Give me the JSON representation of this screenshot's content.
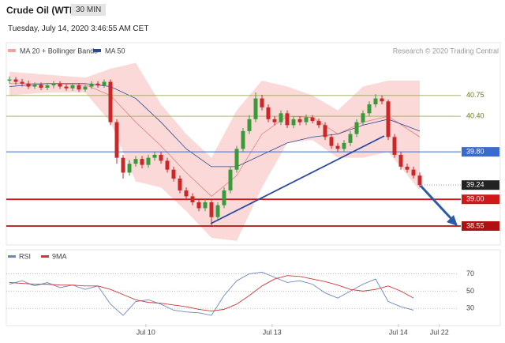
{
  "header": {
    "instrument": "Crude Oil (WTI)",
    "timeframe": "30 MIN",
    "timestamp": "Tuesday, July 14, 2020 3:46:55 AM CET",
    "credit": "Research © 2020 Trading Central"
  },
  "chart_data": [
    {
      "type": "candlestick",
      "ylim": [
        38.23,
        41.36
      ],
      "xlim": [
        -0.5,
        71
      ],
      "xticks": [
        {
          "value": 21.6,
          "label": "Jul 10"
        },
        {
          "value": 41.6,
          "label": "Jul 13"
        },
        {
          "value": 61.6,
          "label": "Jul 14"
        },
        {
          "value": 68.1,
          "label": "Jul 22"
        }
      ],
      "up_color": "#3a9a3a",
      "down_color": "#c82828",
      "open": [
        41.0,
        41.02,
        40.98,
        40.95,
        40.9,
        40.93,
        40.88,
        40.92,
        40.95,
        40.9,
        40.87,
        40.92,
        40.85,
        40.9,
        40.95,
        40.92,
        40.98,
        40.3,
        39.7,
        39.45,
        39.6,
        39.68,
        39.58,
        39.7,
        39.75,
        39.65,
        39.5,
        39.35,
        39.15,
        39.05,
        38.95,
        38.85,
        38.95,
        38.7,
        38.9,
        39.15,
        39.5,
        39.85,
        40.15,
        40.35,
        40.7,
        40.55,
        40.35,
        40.3,
        40.45,
        40.25,
        40.35,
        40.3,
        40.38,
        40.32,
        40.25,
        40.05,
        39.9,
        39.85,
        39.95,
        40.1,
        40.3,
        40.45,
        40.6,
        40.7,
        40.65,
        40.05,
        39.75,
        39.55,
        39.5,
        39.4
      ],
      "high": [
        41.07,
        41.06,
        41.03,
        41.0,
        40.97,
        40.97,
        40.96,
        40.99,
        40.99,
        40.94,
        40.96,
        40.96,
        40.93,
        40.99,
        40.99,
        41.02,
        41.02,
        40.35,
        39.75,
        39.66,
        39.73,
        39.73,
        39.75,
        39.8,
        39.8,
        39.7,
        39.55,
        39.4,
        39.2,
        39.1,
        39.0,
        39.0,
        38.99,
        38.95,
        39.2,
        39.55,
        39.9,
        40.2,
        40.42,
        40.8,
        40.76,
        40.6,
        40.4,
        40.5,
        40.5,
        40.4,
        40.4,
        40.43,
        40.42,
        40.36,
        40.3,
        40.1,
        39.95,
        40.0,
        40.15,
        40.35,
        40.5,
        40.65,
        40.77,
        40.75,
        40.68,
        40.1,
        39.8,
        39.6,
        39.55,
        39.45
      ],
      "low": [
        40.95,
        40.93,
        40.9,
        40.86,
        40.86,
        40.84,
        40.84,
        40.87,
        40.86,
        40.83,
        40.83,
        40.81,
        40.81,
        40.86,
        40.88,
        40.88,
        40.25,
        39.6,
        39.35,
        39.4,
        39.55,
        39.52,
        39.53,
        39.65,
        39.6,
        39.45,
        39.3,
        39.1,
        39.0,
        38.9,
        38.8,
        38.8,
        38.55,
        38.65,
        38.85,
        39.1,
        39.45,
        39.8,
        40.1,
        40.3,
        40.5,
        40.3,
        40.25,
        40.25,
        40.2,
        40.2,
        40.25,
        40.25,
        40.28,
        40.2,
        40.0,
        39.85,
        39.8,
        39.8,
        39.9,
        40.05,
        40.25,
        40.4,
        40.55,
        40.6,
        40.0,
        39.7,
        39.5,
        39.45,
        39.35,
        39.2
      ],
      "close": [
        41.02,
        40.98,
        40.95,
        40.9,
        40.93,
        40.88,
        40.92,
        40.95,
        40.9,
        40.87,
        40.92,
        40.85,
        40.9,
        40.95,
        40.92,
        40.98,
        40.3,
        39.7,
        39.45,
        39.6,
        39.68,
        39.58,
        39.7,
        39.75,
        39.65,
        39.5,
        39.35,
        39.15,
        39.05,
        38.95,
        38.85,
        38.95,
        38.7,
        38.9,
        39.15,
        39.5,
        39.85,
        40.15,
        40.35,
        40.7,
        40.55,
        40.35,
        40.3,
        40.45,
        40.25,
        40.35,
        40.3,
        40.38,
        40.32,
        40.25,
        40.05,
        39.9,
        39.85,
        39.95,
        40.1,
        40.3,
        40.45,
        40.6,
        40.7,
        40.65,
        40.05,
        39.75,
        39.55,
        39.5,
        39.4,
        39.24
      ],
      "bands": {
        "name": "MA 20 + Bollinger Bands",
        "color": "#f4a0a0",
        "x": [
          0,
          6,
          12,
          16,
          20,
          24,
          28,
          32,
          36,
          40,
          44,
          48,
          52,
          56,
          60,
          65
        ],
        "upper": [
          41.15,
          41.1,
          41.05,
          41.2,
          41.3,
          40.6,
          40.1,
          39.7,
          40.5,
          41.0,
          40.9,
          40.75,
          40.5,
          40.9,
          41.0,
          41.0
        ],
        "lower": [
          40.75,
          40.8,
          40.8,
          40.3,
          39.3,
          39.2,
          38.8,
          38.35,
          38.3,
          39.2,
          39.95,
          40.0,
          39.7,
          39.7,
          39.8,
          39.15
        ],
        "ma20": [
          40.95,
          40.95,
          40.93,
          40.75,
          40.3,
          39.9,
          39.45,
          39.05,
          39.4,
          40.1,
          40.4,
          40.38,
          40.1,
          40.3,
          40.4,
          40.05
        ]
      },
      "ma50": {
        "name": "MA 50",
        "color": "#2a4a8c",
        "x": [
          0,
          6,
          12,
          16,
          20,
          24,
          28,
          32,
          36,
          40,
          44,
          48,
          52,
          56,
          60,
          65
        ],
        "values": [
          40.9,
          40.95,
          40.95,
          40.9,
          40.7,
          40.3,
          39.85,
          39.55,
          39.55,
          39.75,
          39.95,
          40.05,
          40.1,
          40.25,
          40.35,
          40.15
        ]
      },
      "levels": [
        {
          "value": 40.75,
          "color": "#9aaa55",
          "style": "thin"
        },
        {
          "value": {
            "value": 40.4,
            "label": "40.40"
          },
          "color": "#9aaa55",
          "style": "thin"
        },
        {
          "value": {
            "value": 39.8,
            "label": "39.80"
          },
          "color": "#3a6ad0",
          "style": "box"
        },
        {
          "value": 39.24,
          "color": "#222222",
          "style": "current"
        },
        {
          "value": {
            "value": 39,
            "label": "39.00"
          },
          "color": "#d01818",
          "style": "box"
        },
        {
          "value": 38.55,
          "color": "#b01010",
          "style": "box"
        }
      ]
    },
    {
      "type": "line",
      "ylim": [
        12,
        96
      ],
      "yticks": [
        30,
        50,
        70
      ],
      "x": [
        0,
        2,
        4,
        6,
        8,
        10,
        12,
        14,
        16,
        18,
        20,
        22,
        24,
        26,
        28,
        30,
        32,
        34,
        36,
        38,
        40,
        42,
        44,
        46,
        48,
        50,
        52,
        54,
        56,
        58,
        60,
        62,
        64
      ],
      "series": [
        {
          "name": "RSI",
          "color": "#6a86c0",
          "values": [
            58,
            62,
            56,
            60,
            54,
            57,
            52,
            56,
            35,
            22,
            38,
            40,
            35,
            28,
            26,
            25,
            22,
            45,
            62,
            70,
            72,
            66,
            60,
            62,
            58,
            48,
            42,
            50,
            58,
            64,
            38,
            32,
            28
          ]
        },
        {
          "name": "9MA",
          "color": "#d03838",
          "values": [
            60,
            59,
            58,
            58,
            57,
            57,
            56,
            56,
            52,
            46,
            40,
            37,
            36,
            34,
            32,
            29,
            27,
            29,
            35,
            45,
            56,
            64,
            68,
            67,
            64,
            61,
            57,
            52,
            50,
            52,
            56,
            50,
            42
          ]
        }
      ]
    }
  ]
}
